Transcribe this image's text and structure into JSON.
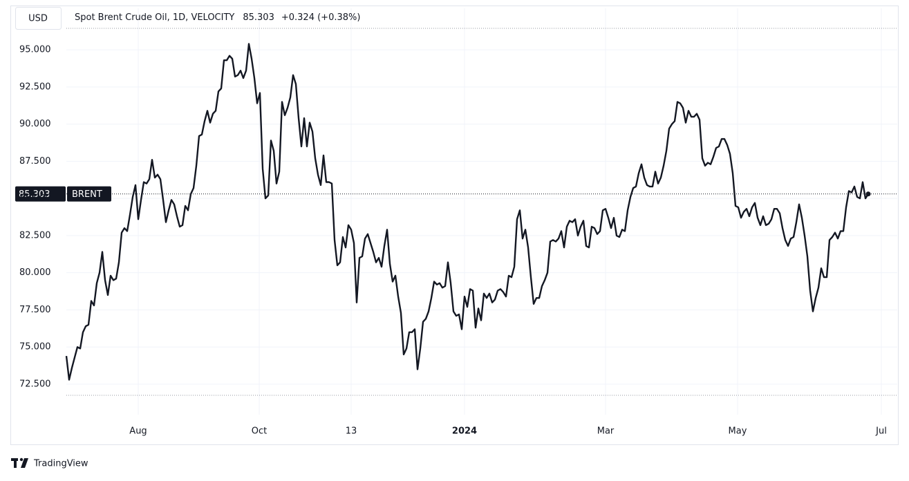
{
  "chart_data": {
    "type": "line",
    "currency": "USD",
    "title": "Spot Brent Crude Oil, 1D, VELOCITY",
    "last_price": 85.303,
    "change_label": "+0.324 (+0.38%)",
    "symbol": "BRENT",
    "color": "#131722",
    "values": [
      74.4,
      72.8,
      73.6,
      74.3,
      75.0,
      74.9,
      76.0,
      76.4,
      76.5,
      78.1,
      77.8,
      79.3,
      80.0,
      81.4,
      79.5,
      78.5,
      79.8,
      79.5,
      79.6,
      80.7,
      82.7,
      83.0,
      82.8,
      83.9,
      85.1,
      85.9,
      83.6,
      84.9,
      86.1,
      86.0,
      86.3,
      87.6,
      86.4,
      86.6,
      86.3,
      84.9,
      83.4,
      84.2,
      84.9,
      84.6,
      83.8,
      83.1,
      83.2,
      84.5,
      84.2,
      85.3,
      85.7,
      87.2,
      89.2,
      89.3,
      90.2,
      90.9,
      90.1,
      90.7,
      90.9,
      92.2,
      92.4,
      94.3,
      94.3,
      94.6,
      94.4,
      93.2,
      93.3,
      93.6,
      93.1,
      93.6,
      95.4,
      94.4,
      93.1,
      91.4,
      92.1,
      87.0,
      85.0,
      85.2,
      88.9,
      88.2,
      86.0,
      86.8,
      91.5,
      90.6,
      91.1,
      91.8,
      93.3,
      92.7,
      90.4,
      88.5,
      90.4,
      88.5,
      90.1,
      89.5,
      87.7,
      86.6,
      85.9,
      87.9,
      86.1,
      86.1,
      86.0,
      82.2,
      80.5,
      80.7,
      82.4,
      81.7,
      83.2,
      82.9,
      82.0,
      78.0,
      81.0,
      81.1,
      82.3,
      82.6,
      82.0,
      81.4,
      80.7,
      81.0,
      80.4,
      81.8,
      82.9,
      80.6,
      79.4,
      79.8,
      78.4,
      77.3,
      74.5,
      74.9,
      76.0,
      76.0,
      76.2,
      73.5,
      74.9,
      76.7,
      76.9,
      77.4,
      78.3,
      79.4,
      79.2,
      79.3,
      79.0,
      79.1,
      80.7,
      79.3,
      77.4,
      77.1,
      77.2,
      76.2,
      78.4,
      77.7,
      78.9,
      78.8,
      76.3,
      77.6,
      76.8,
      78.6,
      78.3,
      78.6,
      78.0,
      78.2,
      78.8,
      78.9,
      78.7,
      78.4,
      79.8,
      79.7,
      80.4,
      83.6,
      84.2,
      82.3,
      82.9,
      81.7,
      79.7,
      77.9,
      78.3,
      78.3,
      79.1,
      79.5,
      80.0,
      82.1,
      82.2,
      82.1,
      82.3,
      82.8,
      81.7,
      83.1,
      83.5,
      83.4,
      83.6,
      82.5,
      83.1,
      83.5,
      81.8,
      81.7,
      83.1,
      83.0,
      82.6,
      82.8,
      84.2,
      84.3,
      83.7,
      83.0,
      83.7,
      82.5,
      82.4,
      82.9,
      82.8,
      84.2,
      85.1,
      85.7,
      85.8,
      86.7,
      87.3,
      86.4,
      85.9,
      85.8,
      85.8,
      86.8,
      86.0,
      86.4,
      87.2,
      88.2,
      89.7,
      90.0,
      90.2,
      91.5,
      91.4,
      91.1,
      90.1,
      90.9,
      90.5,
      90.5,
      90.7,
      90.3,
      87.7,
      87.2,
      87.4,
      87.3,
      87.8,
      88.4,
      88.5,
      89.0,
      89.0,
      88.6,
      88.0,
      86.7,
      84.5,
      84.4,
      83.7,
      84.1,
      84.3,
      83.8,
      84.4,
      84.7,
      83.7,
      83.2,
      83.8,
      83.2,
      83.3,
      83.6,
      84.3,
      84.3,
      84.0,
      83.0,
      82.2,
      81.8,
      82.3,
      82.4,
      83.4,
      84.6,
      83.7,
      82.5,
      81.1,
      78.8,
      77.4,
      78.3,
      79.0,
      80.3,
      79.7,
      79.7,
      82.2,
      82.4,
      82.7,
      82.3,
      82.8,
      82.8,
      84.4,
      85.5,
      85.4,
      85.8,
      85.1,
      85.0,
      86.1,
      85.0,
      85.3
    ],
    "xlim": [
      0,
      300.5
    ],
    "xticks": [
      {
        "value": 26,
        "label": "Aug"
      },
      {
        "value": 69.75,
        "label": "Oct"
      },
      {
        "value": 103,
        "label": "13"
      },
      {
        "value": 144,
        "label": "2024"
      },
      {
        "value": 195,
        "label": "Mar"
      },
      {
        "value": 242.75,
        "label": "May"
      },
      {
        "value": 294.75,
        "label": "Jul"
      }
    ],
    "ylim": [
      70.45,
      96.4
    ],
    "yticks": [
      {
        "value": 72.5,
        "label": "72.500"
      },
      {
        "value": 75,
        "label": "75.000"
      },
      {
        "value": 77.5,
        "label": "77.500"
      },
      {
        "value": 80,
        "label": "80.000"
      },
      {
        "value": 82.5,
        "label": "82.500"
      },
      {
        "value": 85,
        "label": "85.000"
      },
      {
        "value": 87.5,
        "label": "87.500"
      },
      {
        "value": 90,
        "label": "90.000"
      },
      {
        "value": 92.5,
        "label": "92.500"
      },
      {
        "value": 95,
        "label": "95.000"
      }
    ],
    "grid": true
  },
  "branding": "TradingView"
}
